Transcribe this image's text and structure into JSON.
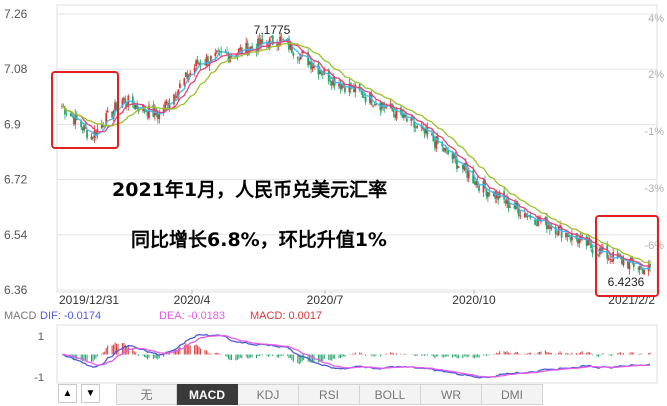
{
  "chart_data": {
    "type": "candlestick",
    "y_axis_left": [
      "7.26",
      "7.08",
      "6.9",
      "6.72",
      "6.54",
      "6.36"
    ],
    "y_axis_right": [
      "4%",
      "2%",
      "-1%",
      "-3%",
      "-6%"
    ],
    "ylim": [
      6.36,
      7.26
    ],
    "x_labels": [
      "2019/12/31",
      "2020/4",
      "2020/7",
      "2020/10",
      "2021/2/2"
    ],
    "annotations": {
      "high": "7.1775",
      "low": "6.4236"
    },
    "overlay_text": [
      "2021年1月，人民币兑美元汇率",
      "同比增长6.8%，环比升值1%"
    ],
    "anchors": [
      {
        "x": "2019/12/31",
        "close": 6.96
      },
      {
        "x": "2020/1/20",
        "close": 6.86
      },
      {
        "x": "2020/2/10",
        "close": 6.98
      },
      {
        "x": "2020/3/5",
        "close": 6.93
      },
      {
        "x": "2020/4/1",
        "close": 7.1
      },
      {
        "x": "2020/5/27",
        "close": 7.1775
      },
      {
        "x": "2020/7/1",
        "close": 7.05
      },
      {
        "x": "2020/8/10",
        "close": 6.95
      },
      {
        "x": "2020/9/10",
        "close": 6.84
      },
      {
        "x": "2020/10/10",
        "close": 6.7
      },
      {
        "x": "2020/11/5",
        "close": 6.62
      },
      {
        "x": "2020/12/1",
        "close": 6.56
      },
      {
        "x": "2021/1/5",
        "close": 6.47
      },
      {
        "x": "2021/2/2",
        "close": 6.4236
      }
    ],
    "moving_average_colors": [
      "#3cb8f5",
      "#e8417a",
      "#9ac12a"
    ],
    "up_color": "#d43a3a",
    "down_color": "#27a66b"
  },
  "macd": {
    "title": "MACD",
    "dif_label": "DIF: -0.0174",
    "dea_label": "DEA: -0.0183",
    "macd_label": "MACD: 0.0017",
    "y_labels": [
      "1",
      "-1"
    ],
    "dif_color": "#4d5bd9",
    "dea_color": "#e45be6"
  },
  "tabs": {
    "prev": "▲",
    "next": "▼",
    "items": [
      "无",
      "MACD",
      "KDJ",
      "RSI",
      "BOLL",
      "WR",
      "DMI"
    ],
    "active": "MACD"
  },
  "colors": {
    "highlight_box": "#e22222",
    "grid": "#e3e3e3",
    "axis_text": "#555555"
  }
}
